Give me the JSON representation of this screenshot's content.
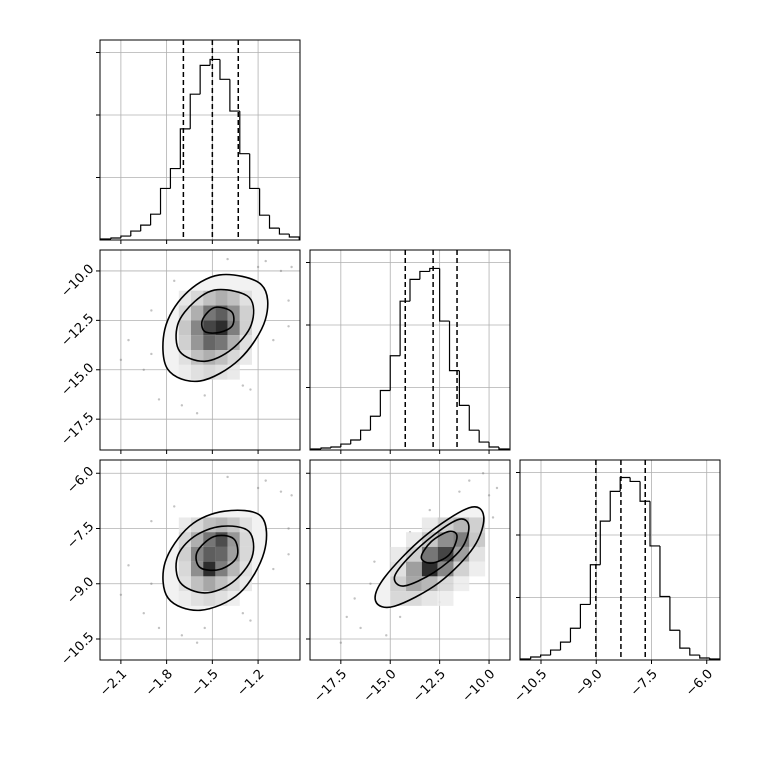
{
  "chart_data": {
    "type": "corner",
    "parameters": [
      {
        "lim": [
          -2.237,
          -0.925
        ],
        "ticks": [
          {
            "value": -2.1,
            "label": "−2.1"
          },
          {
            "value": -1.8,
            "label": "−1.8"
          },
          {
            "value": -1.5,
            "label": "−1.5"
          },
          {
            "value": -1.2,
            "label": "−1.2"
          }
        ],
        "hist": {
          "bins": [
            -2.23,
            -2.165,
            -2.1,
            -2.035,
            -1.97,
            -1.905,
            -1.84,
            -1.775,
            -1.71,
            -1.645,
            -1.58,
            -1.515,
            -1.45,
            -1.385,
            -1.32,
            -1.255,
            -1.19,
            -1.125,
            -1.06,
            -0.995,
            -0.93
          ],
          "counts": [
            16,
            32,
            63,
            143,
            238,
            413,
            825,
            1143,
            1778,
            2333,
            2794,
            2889,
            2571,
            2063,
            1381,
            825,
            397,
            190,
            95,
            48
          ],
          "ylim": [
            0,
            3200
          ],
          "yticks": [
            1000,
            2000,
            3000
          ]
        },
        "quantiles": [
          -1.69,
          -1.5,
          -1.33
        ]
      },
      {
        "lim": [
          -19.06,
          -8.94
        ],
        "ticks": [
          {
            "value": -17.5,
            "label": "−17.5"
          },
          {
            "value": -15,
            "label": "−15.0"
          },
          {
            "value": -12.5,
            "label": "−12.5"
          },
          {
            "value": -10,
            "label": "−10.0"
          }
        ],
        "hist": {
          "bins": [
            -19,
            -18.5,
            -18,
            -17.5,
            -17,
            -16.5,
            -16,
            -15.5,
            -15,
            -14.5,
            -14,
            -13.5,
            -13,
            -12.5,
            -12,
            -11.5,
            -11,
            -10.5,
            -10,
            -9.5,
            -9
          ],
          "counts": [
            16,
            32,
            48,
            95,
            160,
            317,
            540,
            952,
            1508,
            2381,
            2730,
            2857,
            2905,
            2063,
            1270,
            714,
            317,
            127,
            48,
            16
          ],
          "ylim": [
            0,
            3200
          ],
          "yticks": [
            1000,
            2000,
            3000
          ]
        },
        "quantiles": [
          -14.24,
          -12.83,
          -11.62
        ]
      },
      {
        "lim": [
          -11.07,
          -5.64
        ],
        "ticks": [
          {
            "value": -10.5,
            "label": "−10.5"
          },
          {
            "value": -9,
            "label": "−9.0"
          },
          {
            "value": -7.5,
            "label": "−7.5"
          },
          {
            "value": -6,
            "label": "−6.0"
          }
        ],
        "hist": {
          "bins": [
            -11.05,
            -10.78,
            -10.51,
            -10.24,
            -9.97,
            -9.7,
            -9.43,
            -9.16,
            -8.89,
            -8.62,
            -8.35,
            -8.08,
            -7.81,
            -7.54,
            -7.27,
            -7,
            -6.73,
            -6.46,
            -6.19,
            -5.92,
            -5.65
          ],
          "counts": [
            16,
            48,
            79,
            159,
            286,
            508,
            889,
            1524,
            2222,
            2698,
            2920,
            2857,
            2540,
            1825,
            1016,
            476,
            190,
            79,
            32,
            16
          ],
          "ylim": [
            0,
            3200
          ],
          "yticks": [
            1000,
            2000,
            3000
          ]
        },
        "quantiles": [
          -9.01,
          -8.33,
          -7.67
        ]
      }
    ],
    "pairs": [
      {
        "points": {
          "x": [
            -2.05,
            -1.95,
            -1.9,
            -1.85,
            -1.05,
            -1.0,
            -1.1,
            -1.15,
            -1.3,
            -1.7,
            -1.6,
            -1.4,
            -1.2,
            -1.9,
            -1.75,
            -1.0,
            -1.25,
            -1.55,
            -2.1,
            -0.98
          ],
          "y": [
            -13.5,
            -15.0,
            -12.0,
            -16.5,
            -10.0,
            -11.5,
            -13.5,
            -9.5,
            -15.8,
            -16.8,
            -17.2,
            -9.4,
            -9.8,
            -14.2,
            -10.5,
            -12.8,
            -16.0,
            -16.3,
            -14.5,
            -9.8
          ]
        },
        "density": {
          "x_edges": [
            -1.72,
            -1.64,
            -1.56,
            -1.48,
            -1.4,
            -1.32,
            -1.24
          ],
          "y_edges": [
            -11,
            -11.75,
            -12.5,
            -13.25,
            -14,
            -14.75,
            -15.5
          ],
          "counts": [
            [
              2,
              6,
              12,
              16,
              12,
              4
            ],
            [
              6,
              16,
              30,
              36,
              24,
              8
            ],
            [
              10,
              26,
              42,
              48,
              28,
              8
            ],
            [
              8,
              22,
              34,
              30,
              16,
              4
            ],
            [
              4,
              12,
              16,
              12,
              6,
              2
            ],
            [
              1,
              4,
              6,
              4,
              2,
              0
            ]
          ]
        },
        "contours": [
          {
            "x": [
              -1.453,
              -1.178,
              -1.152,
              -1.322,
              -1.583,
              -1.793,
              -1.812,
              -1.681
            ],
            "y": [
              -10.2,
              -10.7,
              -12.46,
              -14.47,
              -15.57,
              -14.97,
              -12.96,
              -11.2
            ]
          },
          {
            "x": [
              -1.466,
              -1.257,
              -1.244,
              -1.374,
              -1.551,
              -1.714,
              -1.727,
              -1.616
            ],
            "y": [
              -10.95,
              -11.35,
              -12.71,
              -13.97,
              -14.57,
              -14.07,
              -12.71,
              -11.55
            ]
          },
          {
            "x": [
              -1.485,
              -1.374,
              -1.368,
              -1.453,
              -1.551,
              -1.564
            ],
            "y": [
              -11.85,
              -12.06,
              -12.76,
              -13.11,
              -13.06,
              -12.46
            ]
          }
        ]
      },
      {
        "points": {
          "x": [
            -2.05,
            -1.95,
            -1.9,
            -1.85,
            -1.05,
            -1.0,
            -1.1,
            -1.15,
            -1.3,
            -1.7,
            -1.6,
            -1.4,
            -1.2,
            -1.9,
            -1.75,
            -1.0,
            -1.25,
            -1.55,
            -2.1,
            -0.98
          ],
          "y": [
            -8.5,
            -9.8,
            -7.3,
            -10.2,
            -6.5,
            -7.5,
            -8.6,
            -6.2,
            -9.8,
            -10.4,
            -10.6,
            -6.1,
            -6.4,
            -9.0,
            -6.9,
            -8.2,
            -10.0,
            -10.2,
            -9.3,
            -6.6
          ]
        },
        "density": {
          "x_edges": [
            -1.72,
            -1.64,
            -1.56,
            -1.48,
            -1.4,
            -1.32,
            -1.24
          ],
          "y_edges": [
            -7.2,
            -7.6,
            -8,
            -8.4,
            -8.8,
            -9.2,
            -9.6
          ],
          "counts": [
            [
              2,
              6,
              12,
              14,
              10,
              4
            ],
            [
              6,
              16,
              30,
              40,
              22,
              6
            ],
            [
              8,
              26,
              36,
              34,
              20,
              6
            ],
            [
              6,
              24,
              48,
              28,
              14,
              4
            ],
            [
              4,
              12,
              18,
              12,
              6,
              2
            ],
            [
              1,
              4,
              6,
              4,
              1,
              0
            ]
          ]
        },
        "contours": [
          {
            "x": [
              -1.42,
              -1.18,
              -1.16,
              -1.32,
              -1.58,
              -1.79,
              -1.81,
              -1.65
            ],
            "y": [
              -7.03,
              -7.17,
              -8.14,
              -9.25,
              -9.72,
              -9.39,
              -8.42,
              -7.44
            ]
          },
          {
            "x": [
              -1.44,
              -1.26,
              -1.24,
              -1.37,
              -1.55,
              -1.71,
              -1.73,
              -1.62
            ],
            "y": [
              -7.44,
              -7.58,
              -8.28,
              -8.97,
              -9.25,
              -8.97,
              -8.28,
              -7.72
            ]
          },
          {
            "x": [
              -1.49,
              -1.36,
              -1.34,
              -1.45,
              -1.58,
              -1.6
            ],
            "y": [
              -7.72,
              -7.78,
              -8.28,
              -8.61,
              -8.56,
              -8.14
            ]
          }
        ]
      },
      {
        "points": {
          "x": [
            -17.2,
            -16.5,
            -16.0,
            -15.2,
            -10.0,
            -9.8,
            -10.5,
            -11.0,
            -13.5,
            -14.5,
            -12.0,
            -10.3,
            -16.8,
            -15.8,
            -11.5,
            -13.0,
            -14.0,
            -9.6,
            -12.5,
            -17.5
          ],
          "y": [
            -9.9,
            -10.2,
            -9.0,
            -10.4,
            -6.6,
            -7.2,
            -8.0,
            -6.2,
            -9.3,
            -9.9,
            -8.8,
            -6.0,
            -9.4,
            -8.4,
            -6.5,
            -7.0,
            -7.6,
            -6.4,
            -9.5,
            -10.6
          ]
        },
        "density": {
          "x_edges": [
            -15,
            -14.2,
            -13.4,
            -12.6,
            -11.8,
            -11,
            -10.2
          ],
          "y_edges": [
            -7.2,
            -7.6,
            -8,
            -8.4,
            -8.8,
            -9.2,
            -9.6
          ],
          "counts": [
            [
              0,
              0,
              2,
              8,
              14,
              8
            ],
            [
              0,
              2,
              10,
              24,
              28,
              10
            ],
            [
              2,
              8,
              30,
              42,
              20,
              4
            ],
            [
              4,
              20,
              48,
              26,
              8,
              1
            ],
            [
              8,
              18,
              14,
              6,
              1,
              0
            ],
            [
              6,
              6,
              3,
              1,
              0,
              0
            ]
          ]
        },
        "contours": [
          {
            "x": [
              -11.02,
              -10.27,
              -10.77,
              -12.53,
              -14.79,
              -15.74,
              -15.29,
              -13.28
            ],
            "y": [
              -6.94,
              -7.17,
              -8.0,
              -8.97,
              -9.61,
              -9.47,
              -8.83,
              -7.72
            ]
          },
          {
            "x": [
              -11.52,
              -11.02,
              -11.42,
              -12.78,
              -14.29,
              -14.79,
              -14.14,
              -12.78
            ],
            "y": [
              -7.25,
              -7.44,
              -8.06,
              -8.69,
              -9.06,
              -8.83,
              -8.33,
              -7.67
            ]
          },
          {
            "x": [
              -12.03,
              -11.62,
              -12.03,
              -12.93,
              -13.43,
              -12.93
            ],
            "y": [
              -7.58,
              -7.72,
              -8.22,
              -8.44,
              -8.28,
              -7.86
            ]
          }
        ]
      }
    ]
  }
}
